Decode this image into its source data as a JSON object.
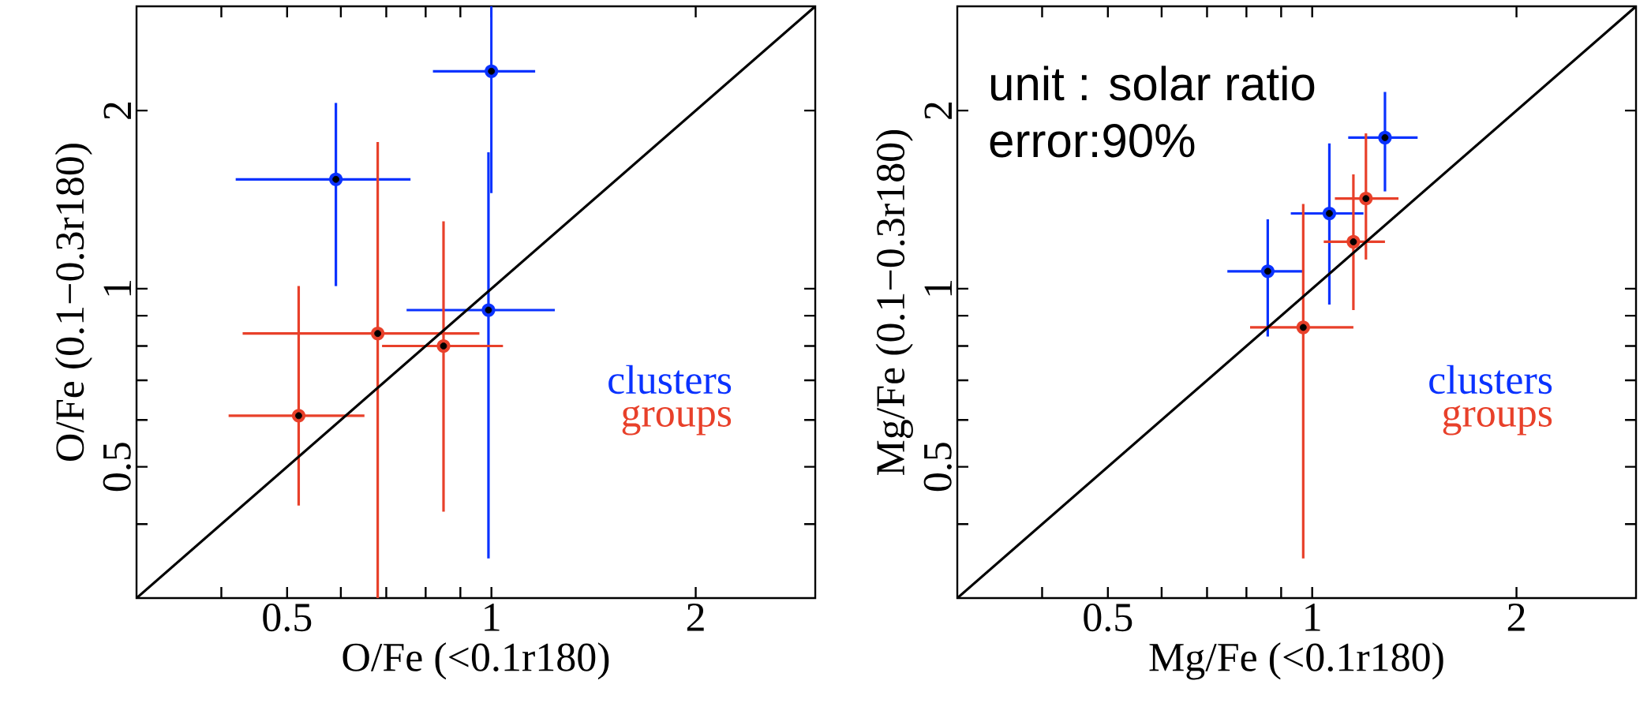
{
  "chart_data": [
    {
      "type": "scatter",
      "xlabel": "O/Fe (<0.1r180)",
      "ylabel": "O/Fe (0.1−0.3r180)",
      "log": "xy",
      "xlim": [
        0.3,
        3
      ],
      "ylim": [
        0.3,
        3
      ],
      "xticks": [
        {
          "value": 0.4,
          "label": null
        },
        0.5,
        {
          "value": 0.6,
          "label": null
        },
        {
          "value": 0.7,
          "label": null
        },
        {
          "value": 0.8,
          "label": null
        },
        {
          "value": 0.9,
          "label": null
        },
        1,
        2
      ],
      "yticks": [
        {
          "value": 0.4,
          "label": null
        },
        0.5,
        {
          "value": 0.6,
          "label": null
        },
        {
          "value": 0.7,
          "label": null
        },
        {
          "value": 0.8,
          "label": null
        },
        {
          "value": 0.9,
          "label": null
        },
        1,
        2
      ],
      "legend": "right",
      "marker": "circle",
      "series": [
        {
          "name": "clusters",
          "color": "#0a32ff",
          "x": [
            1.0,
            0.59,
            0.99
          ],
          "values": [
            2.33,
            1.53,
            0.92
          ],
          "errors": [
            [
              1.45,
              3.0
            ],
            [
              1.01,
              2.06
            ],
            [
              0.35,
              1.7
            ]
          ],
          "xerrors": [
            [
              0.82,
              1.16
            ],
            [
              0.42,
              0.76
            ],
            [
              0.75,
              1.24
            ]
          ]
        },
        {
          "name": "groups",
          "color": "#e8402a",
          "x": [
            0.52,
            0.68,
            0.85
          ],
          "values": [
            0.61,
            0.84,
            0.8
          ],
          "errors": [
            [
              0.43,
              1.01
            ],
            [
              0.3,
              1.77
            ],
            [
              0.42,
              1.3
            ]
          ],
          "xerrors": [
            [
              0.41,
              0.65
            ],
            [
              0.43,
              0.96
            ],
            [
              0.69,
              1.04
            ]
          ]
        },
        {
          "type": "line",
          "marker": "none",
          "color": "#000000",
          "x": [
            0.3,
            3
          ],
          "values": [
            0.3,
            3
          ]
        }
      ]
    },
    {
      "type": "scatter",
      "xlabel": "Mg/Fe (<0.1r180)",
      "ylabel": "Mg/Fe (0.1−0.3r180)",
      "log": "xy",
      "xlim": [
        0.3,
        3
      ],
      "ylim": [
        0.3,
        3
      ],
      "xticks": [
        {
          "value": 0.4,
          "label": null
        },
        0.5,
        {
          "value": 0.6,
          "label": null
        },
        {
          "value": 0.7,
          "label": null
        },
        {
          "value": 0.8,
          "label": null
        },
        {
          "value": 0.9,
          "label": null
        },
        1,
        2
      ],
      "yticks": [
        {
          "value": 0.4,
          "label": null
        },
        0.5,
        {
          "value": 0.6,
          "label": null
        },
        {
          "value": 0.7,
          "label": null
        },
        {
          "value": 0.8,
          "label": null
        },
        {
          "value": 0.9,
          "label": null
        },
        1,
        2
      ],
      "legend": "right",
      "marker": "circle",
      "annotations": [
        "unit : solar ratio",
        "error:90%"
      ],
      "series": [
        {
          "name": "clusters",
          "color": "#0a32ff",
          "x": [
            0.86,
            1.06,
            1.28
          ],
          "values": [
            1.07,
            1.34,
            1.8
          ],
          "errors": [
            [
              0.83,
              1.31
            ],
            [
              0.94,
              1.76
            ],
            [
              1.46,
              2.15
            ]
          ],
          "xerrors": [
            [
              0.75,
              0.97
            ],
            [
              0.93,
              1.19
            ],
            [
              1.13,
              1.43
            ]
          ]
        },
        {
          "name": "groups",
          "color": "#e8402a",
          "x": [
            0.97,
            1.15,
            1.2
          ],
          "values": [
            0.86,
            1.2,
            1.42
          ],
          "errors": [
            [
              0.35,
              1.39
            ],
            [
              0.92,
              1.56
            ],
            [
              1.12,
              1.83
            ]
          ],
          "xerrors": [
            [
              0.81,
              1.15
            ],
            [
              1.04,
              1.28
            ],
            [
              1.08,
              1.34
            ]
          ]
        },
        {
          "type": "line",
          "marker": "none",
          "color": "#000000",
          "x": [
            0.3,
            3
          ],
          "values": [
            0.3,
            3
          ]
        }
      ]
    }
  ]
}
